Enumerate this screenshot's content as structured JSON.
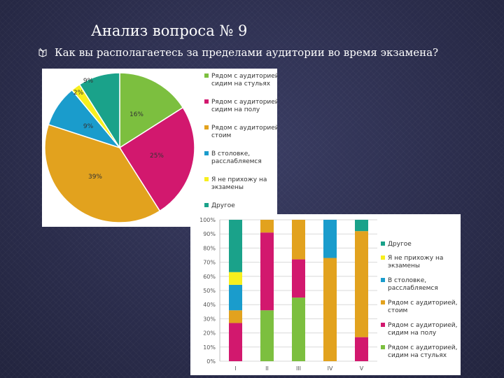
{
  "slide": {
    "title": "Анализ вопроса № 9",
    "question": "Как вы располагаетесь за пределами аудитории во время экзамена?"
  },
  "colors": {
    "green": "#7cbf3f",
    "magenta": "#d2186e",
    "orange": "#e2a21e",
    "blue": "#1a9ccc",
    "yellow": "#f7ef1e",
    "teal": "#1aa28a"
  },
  "icons": {
    "bullet": "book-bullet-icon"
  },
  "chart_data": [
    {
      "type": "pie",
      "legend_position": "right",
      "legend": [
        "Рядом с аудиторией, сидим на стульях",
        "Рядом с аудиторией, сидим на полу",
        "Рядом с аудиторией, стоим",
        "В столовке, расслабляемся",
        "Я не прихожу на экзамены",
        "Другое"
      ],
      "values": [
        16,
        25,
        39,
        9,
        2,
        9
      ],
      "labels": [
        "16%",
        "25%",
        "39%",
        "9%",
        "2%",
        "9%"
      ],
      "colors": [
        "#7cbf3f",
        "#d2186e",
        "#e2a21e",
        "#1a9ccc",
        "#f7ef1e",
        "#1aa28a"
      ]
    },
    {
      "type": "bar",
      "stacked": true,
      "percent": true,
      "legend_position": "right",
      "categories": [
        "I",
        "II",
        "III",
        "IV",
        "V"
      ],
      "y_ticks": [
        "0%",
        "10%",
        "20%",
        "30%",
        "40%",
        "50%",
        "60%",
        "70%",
        "80%",
        "90%",
        "100%"
      ],
      "ylim": [
        0,
        100
      ],
      "series": [
        {
          "name": "Рядом с аудиторией, сидим на стульях",
          "color": "#7cbf3f",
          "values": [
            0,
            36,
            45,
            0,
            0
          ]
        },
        {
          "name": "Рядом с аудиторией, сидим на полу",
          "color": "#d2186e",
          "values": [
            27,
            55,
            27,
            0,
            17
          ]
        },
        {
          "name": "Рядом с аудиторией, стоим",
          "color": "#e2a21e",
          "values": [
            9,
            9,
            28,
            73,
            75
          ]
        },
        {
          "name": "В столовке, расслабляемся",
          "color": "#1a9ccc",
          "values": [
            18,
            0,
            0,
            27,
            0
          ]
        },
        {
          "name": "Я не прихожу на экзамены",
          "color": "#f7ef1e",
          "values": [
            9,
            0,
            0,
            0,
            0
          ]
        },
        {
          "name": "Другое",
          "color": "#1aa28a",
          "values": [
            37,
            0,
            0,
            0,
            8
          ]
        }
      ]
    }
  ]
}
